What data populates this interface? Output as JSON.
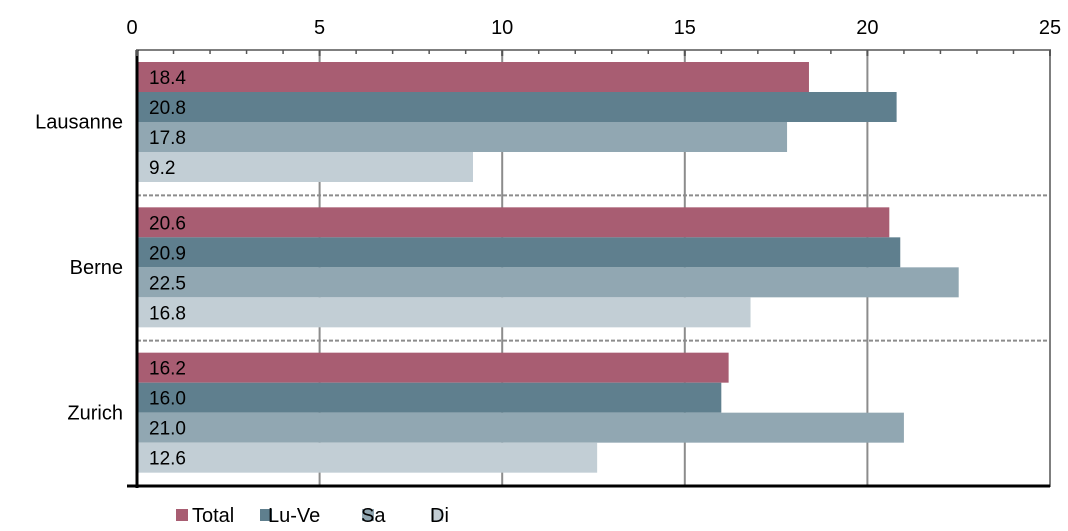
{
  "chart_data": {
    "type": "bar",
    "orientation": "horizontal",
    "categories": [
      "Lausanne",
      "Berne",
      "Zurich"
    ],
    "series": [
      {
        "name": "Total",
        "color": "#a85d72",
        "values": [
          18.4,
          20.6,
          16.2
        ]
      },
      {
        "name": "Lu-Ve",
        "color": "#5f7f8e",
        "values": [
          20.8,
          20.9,
          16.0
        ]
      },
      {
        "name": "Sa",
        "color": "#91a7b2",
        "values": [
          17.8,
          22.5,
          21.0
        ]
      },
      {
        "name": "Di",
        "color": "#c2ced5",
        "values": [
          9.2,
          16.8,
          12.6
        ]
      }
    ],
    "xlim": [
      0,
      25
    ],
    "xticks": [
      0,
      5,
      10,
      15,
      20,
      25
    ],
    "x_axis_position": "top",
    "grid": true,
    "legend_position": "bottom-left",
    "data_labels": true,
    "title": "",
    "xlabel": "",
    "ylabel": ""
  }
}
